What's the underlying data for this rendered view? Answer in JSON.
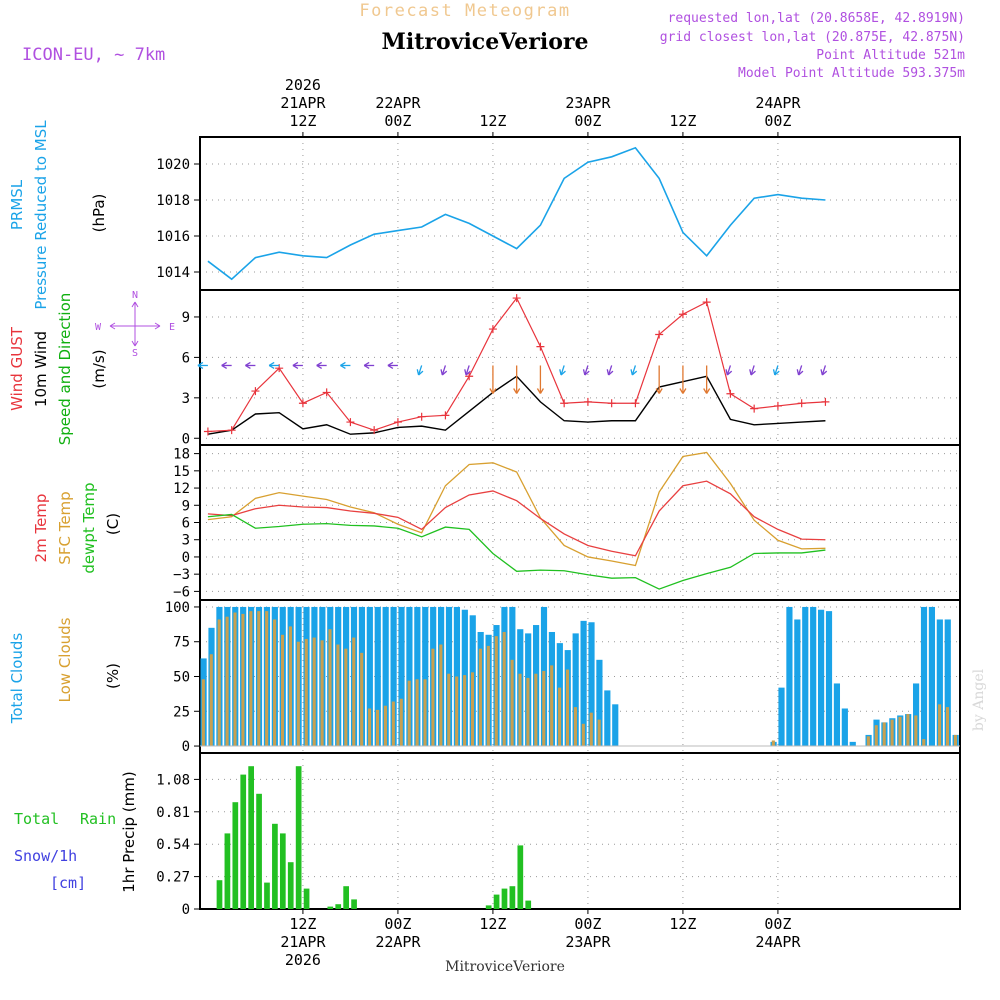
{
  "header": {
    "faded_title": "Forecast Meteogram",
    "title": "MitroviceVeriore",
    "model": "ICON-EU, ~ 7km",
    "requested": "requested lon,lat (20.8658E, 42.8919N)",
    "grid": "grid closest lon,lat (20.875E, 42.875N)",
    "point_alt": "Point Altitude 521m",
    "model_alt": "Model Point Altitude 593.375m"
  },
  "top_axis": {
    "ticks": [
      {
        "lines": [
          "2026",
          "21APR",
          "12Z"
        ]
      },
      {
        "lines": [
          "22APR",
          "00Z"
        ]
      },
      {
        "lines": [
          "12Z"
        ]
      },
      {
        "lines": [
          "23APR",
          "00Z"
        ]
      },
      {
        "lines": [
          "12Z"
        ]
      },
      {
        "lines": [
          "24APR",
          "00Z"
        ]
      }
    ]
  },
  "bottom_axis": {
    "ticks": [
      {
        "lines": [
          "12Z",
          "21APR",
          "2026"
        ]
      },
      {
        "lines": [
          "00Z",
          "22APR"
        ]
      },
      {
        "lines": [
          "12Z"
        ]
      },
      {
        "lines": [
          "00Z",
          "23APR"
        ]
      },
      {
        "lines": [
          "12Z"
        ]
      },
      {
        "lines": [
          "00Z",
          "24APR"
        ]
      }
    ],
    "footer": "MitroviceVeriore"
  },
  "watermark": "by Angel",
  "colors": {
    "pressure": "#1aa3e8",
    "gust": "#e8343c",
    "wind": "#000000",
    "direction": "#10b010",
    "temp2m": "#e84040",
    "sfc": "#d8a030",
    "dewpt": "#20c020",
    "total_clouds": "#1aa3e8",
    "low_clouds": "#c8a050",
    "rain": "#22c022",
    "snow": "#4040e0",
    "purple": "#b050e0",
    "faded": "#f0c890",
    "grid": "#999999"
  },
  "panels": {
    "pressure": {
      "labels": [
        "PRMSL",
        "Pressure Reduced to MSL"
      ],
      "unit": "(hPa)",
      "ticks": [
        "1020",
        "1018",
        "1016",
        "1014"
      ]
    },
    "wind": {
      "labels": [
        "Wind GUST",
        "10m Wind",
        "Speed and Direction"
      ],
      "unit": "(m/s)",
      "ticks": [
        "9",
        "6",
        "3",
        "0"
      ],
      "compass": {
        "n": "N",
        "s": "S",
        "w": "W",
        "e": "E"
      }
    },
    "temp": {
      "labels": [
        "2m Temp",
        "SFC Temp",
        "dewpt Temp"
      ],
      "unit": "(C)",
      "ticks": [
        "18",
        "15",
        "12",
        "9",
        "6",
        "3",
        "0",
        "−3",
        "−6"
      ]
    },
    "clouds": {
      "labels": [
        "Total Clouds",
        "Low Clouds"
      ],
      "unit": "(%)",
      "ticks": [
        "100",
        "75",
        "50",
        "25",
        "0"
      ]
    },
    "precip": {
      "labels": [
        "Total",
        "Rain",
        "Snow/1h",
        "[cm]"
      ],
      "unit": "1hr Precip (mm)",
      "ticks": [
        "1.08",
        "0.81",
        "0.54",
        "0.27",
        "0"
      ]
    }
  },
  "chart_data": [
    {
      "type": "line",
      "title": "PRMSL Pressure Reduced to MSL",
      "ylabel": "hPa",
      "ylim": [
        1013,
        1021.5
      ],
      "x_hours": [
        0,
        3,
        6,
        9,
        12,
        15,
        18,
        21,
        24,
        27,
        30,
        33,
        36,
        39,
        42,
        45,
        48,
        51,
        54,
        57,
        60,
        63,
        66,
        69,
        72,
        75,
        78
      ],
      "values": [
        1014.6,
        1013.6,
        1014.8,
        1015.1,
        1014.9,
        1014.8,
        1015.5,
        1016.1,
        1016.3,
        1016.5,
        1017.2,
        1016.7,
        1016.0,
        1015.3,
        1016.6,
        1019.2,
        1020.1,
        1020.4,
        1020.9,
        1019.2,
        1016.2,
        1014.9,
        1016.6,
        1018.1,
        1018.3,
        1018.1,
        1018.0
      ]
    },
    {
      "type": "line",
      "title": "Wind GUST / 10m Wind Speed and Direction",
      "ylabel": "m/s",
      "ylim": [
        -0.5,
        11
      ],
      "x_hours": [
        0,
        3,
        6,
        9,
        12,
        15,
        18,
        21,
        24,
        27,
        30,
        33,
        36,
        39,
        42,
        45,
        48,
        51,
        54,
        57,
        60,
        63,
        66,
        69,
        72,
        75,
        78
      ],
      "series": [
        {
          "name": "Wind GUST",
          "values": [
            0.5,
            0.6,
            3.5,
            5.2,
            2.6,
            3.4,
            1.2,
            0.6,
            1.2,
            1.6,
            1.7,
            4.6,
            8.1,
            10.4,
            6.8,
            2.6,
            2.7,
            2.6,
            2.6,
            7.7,
            9.2,
            10.1,
            3.3,
            2.2,
            2.4,
            2.6,
            2.7
          ]
        },
        {
          "name": "10m Wind",
          "values": [
            0.3,
            0.6,
            1.8,
            1.9,
            0.7,
            1.0,
            0.3,
            0.4,
            0.8,
            0.9,
            0.6,
            2.0,
            3.4,
            4.6,
            2.7,
            1.3,
            1.2,
            1.3,
            1.3,
            3.8,
            4.2,
            4.6,
            1.4,
            1.0,
            1.1,
            1.2,
            1.3
          ]
        }
      ]
    },
    {
      "type": "line",
      "title": "2m Temp / SFC Temp / dewpt Temp",
      "ylabel": "C",
      "ylim": [
        -7.5,
        19.5
      ],
      "x_hours": [
        0,
        3,
        6,
        9,
        12,
        15,
        18,
        21,
        24,
        27,
        30,
        33,
        36,
        39,
        42,
        45,
        48,
        51,
        54,
        57,
        60,
        63,
        66,
        69,
        72,
        75,
        78
      ],
      "series": [
        {
          "name": "2m Temp",
          "values": [
            7.5,
            7.2,
            8.4,
            9.0,
            8.7,
            8.6,
            8.0,
            7.6,
            6.9,
            4.8,
            8.6,
            10.8,
            11.5,
            9.8,
            6.7,
            4.0,
            2.0,
            1.0,
            0.2,
            8.0,
            12.4,
            13.2,
            11.0,
            7.0,
            4.8,
            3.1,
            3.0
          ]
        },
        {
          "name": "SFC Temp",
          "values": [
            6.5,
            7.0,
            10.2,
            11.2,
            10.6,
            10.0,
            8.7,
            7.7,
            5.7,
            4.2,
            12.4,
            16.1,
            16.4,
            14.8,
            6.8,
            2.0,
            0.0,
            -0.7,
            -1.5,
            11.3,
            17.5,
            18.2,
            12.8,
            6.4,
            2.9,
            1.4,
            1.5
          ]
        },
        {
          "name": "dewpt Temp",
          "values": [
            7.0,
            7.4,
            5.0,
            5.3,
            5.7,
            5.8,
            5.5,
            5.4,
            5.0,
            3.5,
            5.2,
            4.8,
            0.6,
            -2.5,
            -2.3,
            -2.4,
            -3.1,
            -3.7,
            -3.6,
            -5.6,
            -4.1,
            -2.9,
            -1.8,
            0.6,
            0.7,
            0.7,
            1.2
          ]
        }
      ]
    },
    {
      "type": "bar",
      "title": "Total Clouds / Low Clouds",
      "ylabel": "%",
      "ylim": [
        -5,
        105
      ],
      "start_hour": 0,
      "series": [
        {
          "name": "Total Clouds",
          "values": [
            63,
            85,
            100,
            100,
            100,
            100,
            100,
            100,
            100,
            100,
            100,
            100,
            100,
            100,
            100,
            100,
            100,
            100,
            100,
            100,
            100,
            100,
            100,
            100,
            100,
            100,
            100,
            100,
            100,
            100,
            100,
            100,
            100,
            98,
            94,
            82,
            80,
            87,
            100,
            100,
            84,
            81,
            87,
            100,
            82,
            74,
            69,
            81,
            90,
            89,
            62,
            40,
            30,
            0,
            0,
            0,
            0,
            0,
            0,
            0,
            0,
            0,
            0,
            0,
            0,
            0,
            0,
            0,
            0,
            0,
            0,
            0,
            3,
            42,
            100,
            91,
            100,
            100,
            98,
            97,
            45,
            27,
            3,
            0,
            8,
            19,
            17,
            20,
            22,
            23,
            45,
            100,
            100,
            91,
            91,
            8
          ]
        },
        {
          "name": "Low Clouds",
          "values": [
            48,
            66,
            91,
            93,
            96,
            95,
            97,
            97,
            97,
            91,
            80,
            86,
            75,
            77,
            78,
            76,
            84,
            73,
            70,
            78,
            67,
            27,
            26,
            29,
            32,
            34,
            47,
            48,
            48,
            70,
            73,
            52,
            50,
            51,
            53,
            70,
            72,
            79,
            82,
            62,
            52,
            49,
            52,
            54,
            58,
            42,
            55,
            28,
            16,
            24,
            19,
            0,
            0,
            0,
            0,
            0,
            0,
            0,
            0,
            0,
            0,
            0,
            0,
            0,
            0,
            0,
            0,
            0,
            0,
            0,
            0,
            0,
            4,
            0,
            0,
            0,
            0,
            0,
            0,
            0,
            0,
            0,
            0,
            0,
            7,
            15,
            17,
            19,
            21,
            23,
            22,
            5,
            0,
            30,
            28,
            8
          ]
        }
      ]
    },
    {
      "type": "bar",
      "title": "1hr Precip",
      "ylabel": "1hr Precip (mm)",
      "ylim": [
        0,
        1.3
      ],
      "start_hour": 0,
      "series": [
        {
          "name": "Total Rain",
          "values": [
            0,
            0,
            0.24,
            0.63,
            0.89,
            1.12,
            1.19,
            0.96,
            0.22,
            0.71,
            0.63,
            0.39,
            1.19,
            0.17,
            0,
            0,
            0.02,
            0.04,
            0.19,
            0.08,
            0,
            0,
            0,
            0,
            0,
            0,
            0,
            0,
            0,
            0,
            0,
            0,
            0,
            0,
            0,
            0,
            0.03,
            0.12,
            0.17,
            0.19,
            0.53,
            0.07,
            0,
            0,
            0,
            0,
            0,
            0,
            0,
            0,
            0,
            0,
            0,
            0,
            0,
            0,
            0,
            0,
            0,
            0,
            0,
            0,
            0,
            0,
            0,
            0,
            0,
            0,
            0,
            0,
            0,
            0,
            0,
            0,
            0,
            0,
            0,
            0,
            0,
            0,
            0,
            0,
            0,
            0,
            0,
            0,
            0,
            0,
            0,
            0,
            0,
            0,
            0,
            0,
            0,
            0
          ]
        }
      ]
    }
  ]
}
